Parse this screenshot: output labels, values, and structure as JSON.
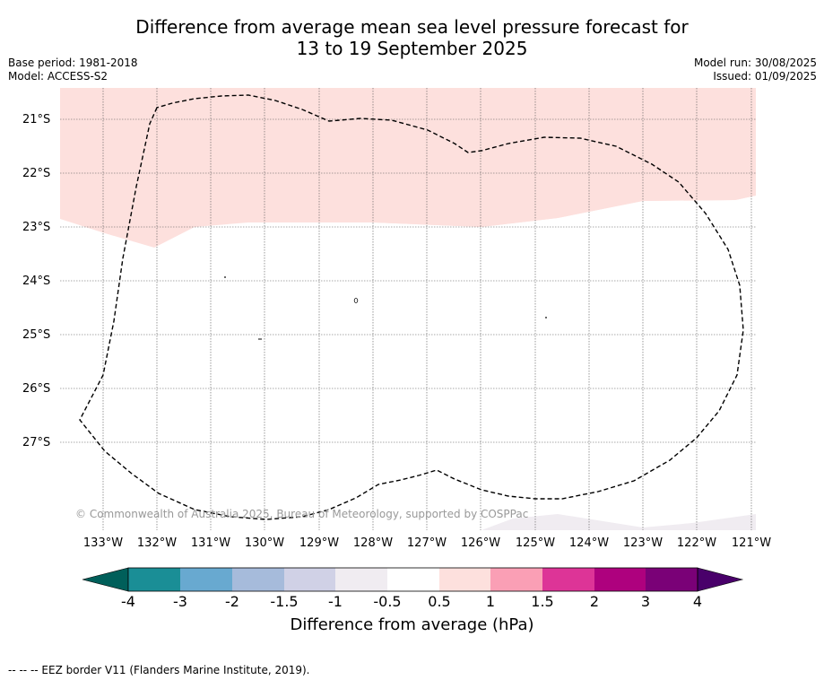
{
  "header": {
    "title_line1": "Difference from average mean sea level pressure forecast for",
    "title_line2": "13 to 19 September 2025",
    "base_period": "Base period: 1981-2018",
    "model": "Model: ACCESS-S2",
    "model_run": "Model run: 30/08/2025",
    "issued": "Issued: 01/09/2025"
  },
  "map": {
    "lat_labels": [
      "21°S",
      "22°S",
      "23°S",
      "24°S",
      "25°S",
      "26°S",
      "27°S"
    ],
    "lon_labels": [
      "133°W",
      "132°W",
      "131°W",
      "130°W",
      "129°W",
      "128°W",
      "127°W",
      "126°W",
      "125°W",
      "124°W",
      "123°W",
      "122°W",
      "121°W"
    ],
    "copyright": "© Commonwealth of Australia 2025, Bureau of Meteorology, supported by COSPPac",
    "colors": {
      "band_0_5_to_1": "#fde0dd",
      "band_minus1_to_minus0_5": "#f0ecf1",
      "eez_line": "#000000"
    }
  },
  "colorbar": {
    "ticks": [
      "-4",
      "-3",
      "-2",
      "-1.5",
      "-1",
      "-0.5",
      "0.5",
      "1",
      "1.5",
      "2",
      "3",
      "4"
    ],
    "colors": [
      "#005f5a",
      "#1a8e96",
      "#68a9d0",
      "#a6bbdb",
      "#d0d1e6",
      "#f0ecf1",
      "#ffffff",
      "#fde0dd",
      "#fa9fb5",
      "#dd3497",
      "#ae017e",
      "#7a0177",
      "#49006a"
    ],
    "label": "Difference from average (hPa)"
  },
  "footer": {
    "legend": "-- -- -- EEZ border V11 (Flanders Marine Institute, 2019)."
  }
}
